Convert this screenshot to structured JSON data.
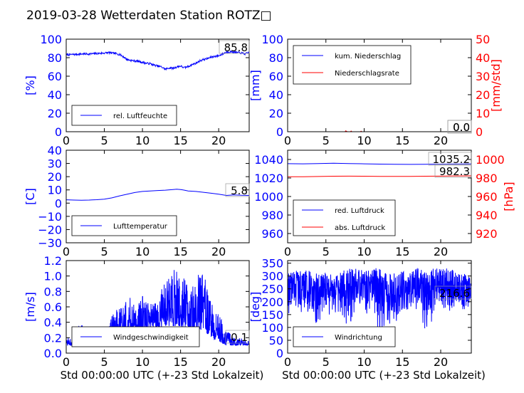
{
  "figure": {
    "title": "2019-03-28 Wetterdaten Station ROTZ□",
    "xlabel": "Std 00:00:00 UTC (+-23 Std Lokalzeit)"
  },
  "colors": {
    "primary": "#0000ff",
    "secondary": "#ff0000",
    "axis": "#000000"
  },
  "chart_data": [
    {
      "id": "humidity",
      "type": "line",
      "ylabel": "[%]",
      "xlim": [
        0,
        24
      ],
      "ylim": [
        0,
        100
      ],
      "xticks": [
        "0",
        "5",
        "10",
        "15",
        "20"
      ],
      "yticks": [
        "0",
        "20",
        "40",
        "60",
        "80",
        "100"
      ],
      "legend": [
        "rel. Luftfeuchte"
      ],
      "legend_loc": "lower-left",
      "last_values": [
        "85.8"
      ],
      "series": [
        {
          "name": "rel. Luftfeuchte",
          "color": "#0000ff",
          "x": [
            0,
            1,
            2,
            3,
            4,
            5,
            5.5,
            6,
            6.5,
            7,
            7.5,
            8,
            8.5,
            9,
            9.5,
            10,
            10.5,
            11,
            11.5,
            12,
            12.5,
            13,
            13.5,
            14,
            14.5,
            15,
            15.5,
            16,
            16.5,
            17,
            17.5,
            18,
            18.5,
            19,
            19.5,
            20,
            20.5,
            21,
            21.5,
            22,
            22.5,
            23,
            23.5,
            24
          ],
          "y": [
            83,
            83.5,
            84,
            84,
            84.5,
            85,
            85.5,
            85,
            84.5,
            83.5,
            81,
            78,
            77,
            76.5,
            76,
            75,
            74,
            73.5,
            72,
            71,
            70,
            67.5,
            69,
            68.5,
            70,
            71,
            69,
            70.5,
            72.5,
            74,
            76.5,
            78,
            79,
            80.5,
            81.5,
            82,
            84,
            86,
            86.5,
            86,
            85.5,
            85,
            84,
            85.8
          ]
        }
      ]
    },
    {
      "id": "precipitation",
      "type": "line",
      "ylabel": "[mm]",
      "ylabel_right": "[mm/std]",
      "xlim": [
        0,
        24
      ],
      "ylim": [
        0,
        100
      ],
      "ylim_right": [
        0,
        50
      ],
      "xticks": [
        "0",
        "5",
        "10",
        "15",
        "20"
      ],
      "yticks": [
        "0",
        "20",
        "40",
        "60",
        "80",
        "100"
      ],
      "yticks_right": [
        "0",
        "10",
        "20",
        "30",
        "40",
        "50"
      ],
      "legend": [
        "kum. Niederschlag",
        "Niederschlagsrate"
      ],
      "legend_loc": "upper-left",
      "last_values": [
        "0.0",
        "0.0"
      ],
      "series": [
        {
          "name": "kum. Niederschlag",
          "color": "#0000ff",
          "axis": "left",
          "x": [
            0,
            24
          ],
          "y": [
            0,
            0
          ]
        },
        {
          "name": "Niederschlagsrate",
          "color": "#ff0000",
          "axis": "right",
          "x": [
            0,
            7.5,
            7.6,
            7.7,
            7.8,
            8.2,
            8.3,
            8.4,
            9.5,
            9.6,
            9.7,
            24
          ],
          "y": [
            0,
            0,
            0.5,
            0.2,
            0,
            0,
            0.4,
            0,
            0,
            0.3,
            0,
            0
          ]
        }
      ]
    },
    {
      "id": "temperature",
      "type": "line",
      "ylabel": "[C]",
      "xlim": [
        0,
        24
      ],
      "ylim": [
        -30,
        40
      ],
      "xticks": [
        "0",
        "5",
        "10",
        "15",
        "20"
      ],
      "yticks": [
        "−30",
        "−20",
        "−10",
        "0",
        "10",
        "20",
        "30",
        "40"
      ],
      "legend": [
        "Lufttemperatur"
      ],
      "legend_loc": "lower-left",
      "last_values": [
        "5.8"
      ],
      "series": [
        {
          "name": "Lufttemperatur",
          "color": "#0000ff",
          "x": [
            0,
            1,
            2,
            3,
            4,
            5,
            6,
            7,
            8,
            9,
            10,
            11,
            12,
            13,
            14,
            14.5,
            15,
            15.5,
            16,
            17,
            18,
            19,
            20,
            21,
            22,
            23,
            24
          ],
          "y": [
            2.5,
            2.3,
            2.2,
            2.3,
            2.6,
            3,
            4,
            5.5,
            6.8,
            8,
            8.8,
            9.2,
            9.5,
            9.8,
            10.2,
            10.5,
            10.3,
            9.8,
            9.2,
            8.8,
            8.2,
            7.5,
            6.8,
            5.8,
            6.2,
            5.9,
            5.8
          ]
        }
      ]
    },
    {
      "id": "pressure",
      "type": "line",
      "ylabel_right": "[hPa]",
      "xlim": [
        0,
        24
      ],
      "ylim": [
        950,
        1050
      ],
      "ylim_right": [
        910,
        1010
      ],
      "xticks": [
        "0",
        "5",
        "10",
        "15",
        "20"
      ],
      "yticks": [
        "960",
        "980",
        "1000",
        "1020",
        "1040"
      ],
      "yticks_right": [
        "920",
        "940",
        "960",
        "980",
        "1000"
      ],
      "legend": [
        "red. Luftdruck",
        "abs. Luftdruck"
      ],
      "legend_loc": "lower-left",
      "last_values": [
        "1035.2",
        "982.3"
      ],
      "series": [
        {
          "name": "red. Luftdruck",
          "color": "#0000ff",
          "axis": "left",
          "x": [
            0,
            2,
            4,
            6,
            8,
            10,
            12,
            14,
            16,
            18,
            20,
            22,
            24
          ],
          "y": [
            1035.5,
            1035.3,
            1035.6,
            1035.9,
            1035.6,
            1035.3,
            1035.0,
            1034.8,
            1034.7,
            1034.8,
            1035.0,
            1035.1,
            1035.2
          ]
        },
        {
          "name": "abs. Luftdruck",
          "color": "#ff0000",
          "axis": "right",
          "x": [
            0,
            2,
            4,
            6,
            8,
            10,
            12,
            14,
            16,
            18,
            20,
            22,
            24
          ],
          "y": [
            981.4,
            981.3,
            981.6,
            981.9,
            982.0,
            981.9,
            981.8,
            981.8,
            981.8,
            981.9,
            982.0,
            982.2,
            982.3
          ]
        }
      ]
    },
    {
      "id": "windspeed",
      "type": "line",
      "ylabel": "[m/s]",
      "xlim": [
        0,
        24
      ],
      "ylim": [
        0,
        1.2
      ],
      "xticks": [
        "0",
        "5",
        "10",
        "15",
        "20"
      ],
      "yticks": [
        "0.0",
        "0.2",
        "0.4",
        "0.6",
        "0.8",
        "1.0",
        "1.2"
      ],
      "legend": [
        "Windgeschwindigkeit"
      ],
      "legend_loc": "lower-left",
      "last_values": [
        "0.1"
      ],
      "envelope_x": [
        0,
        1,
        2,
        3,
        4,
        5,
        6,
        7,
        8,
        9,
        10,
        11,
        12,
        13,
        14,
        15,
        16,
        17,
        18,
        19,
        20,
        21,
        22,
        23,
        24
      ],
      "envelope_lo": [
        0.1,
        0.1,
        0.1,
        0.1,
        0.1,
        0.1,
        0.15,
        0.2,
        0.25,
        0.25,
        0.3,
        0.3,
        0.3,
        0.35,
        0.35,
        0.35,
        0.3,
        0.3,
        0.3,
        0.2,
        0.15,
        0.1,
        0.1,
        0.1,
        0.1
      ],
      "envelope_hi": [
        0.25,
        0.3,
        0.4,
        0.3,
        0.3,
        0.3,
        0.5,
        0.6,
        0.75,
        0.7,
        0.75,
        0.7,
        0.65,
        1.0,
        1.13,
        1.05,
        0.95,
        1.0,
        1.05,
        0.65,
        0.5,
        0.3,
        0.2,
        0.2,
        0.15
      ],
      "series": [
        {
          "name": "Windgeschwindigkeit",
          "color": "#0000ff"
        }
      ]
    },
    {
      "id": "winddirection",
      "type": "line",
      "ylabel": "[deg]",
      "xlim": [
        0,
        24
      ],
      "ylim": [
        0,
        360
      ],
      "xticks": [
        "0",
        "5",
        "10",
        "15",
        "20"
      ],
      "yticks": [
        "0",
        "50",
        "100",
        "150",
        "200",
        "250",
        "300",
        "350"
      ],
      "legend": [
        "Windrichtung"
      ],
      "legend_loc": "lower-left",
      "last_values": [
        "216.6"
      ],
      "envelope_x": [
        0,
        1,
        2,
        3,
        4,
        5,
        6,
        7,
        8,
        9,
        10,
        11,
        12,
        13,
        14,
        15,
        16,
        17,
        18,
        19,
        20,
        21,
        22,
        23,
        24
      ],
      "envelope_lo": [
        150,
        180,
        150,
        160,
        100,
        140,
        150,
        120,
        100,
        150,
        160,
        130,
        80,
        100,
        120,
        140,
        150,
        160,
        80,
        130,
        180,
        160,
        150,
        170,
        180
      ],
      "envelope_hi": [
        310,
        320,
        330,
        320,
        310,
        320,
        300,
        320,
        330,
        330,
        320,
        330,
        330,
        310,
        320,
        320,
        330,
        330,
        320,
        330,
        330,
        330,
        320,
        310,
        300
      ],
      "series": [
        {
          "name": "Windrichtung",
          "color": "#0000ff"
        }
      ]
    }
  ]
}
